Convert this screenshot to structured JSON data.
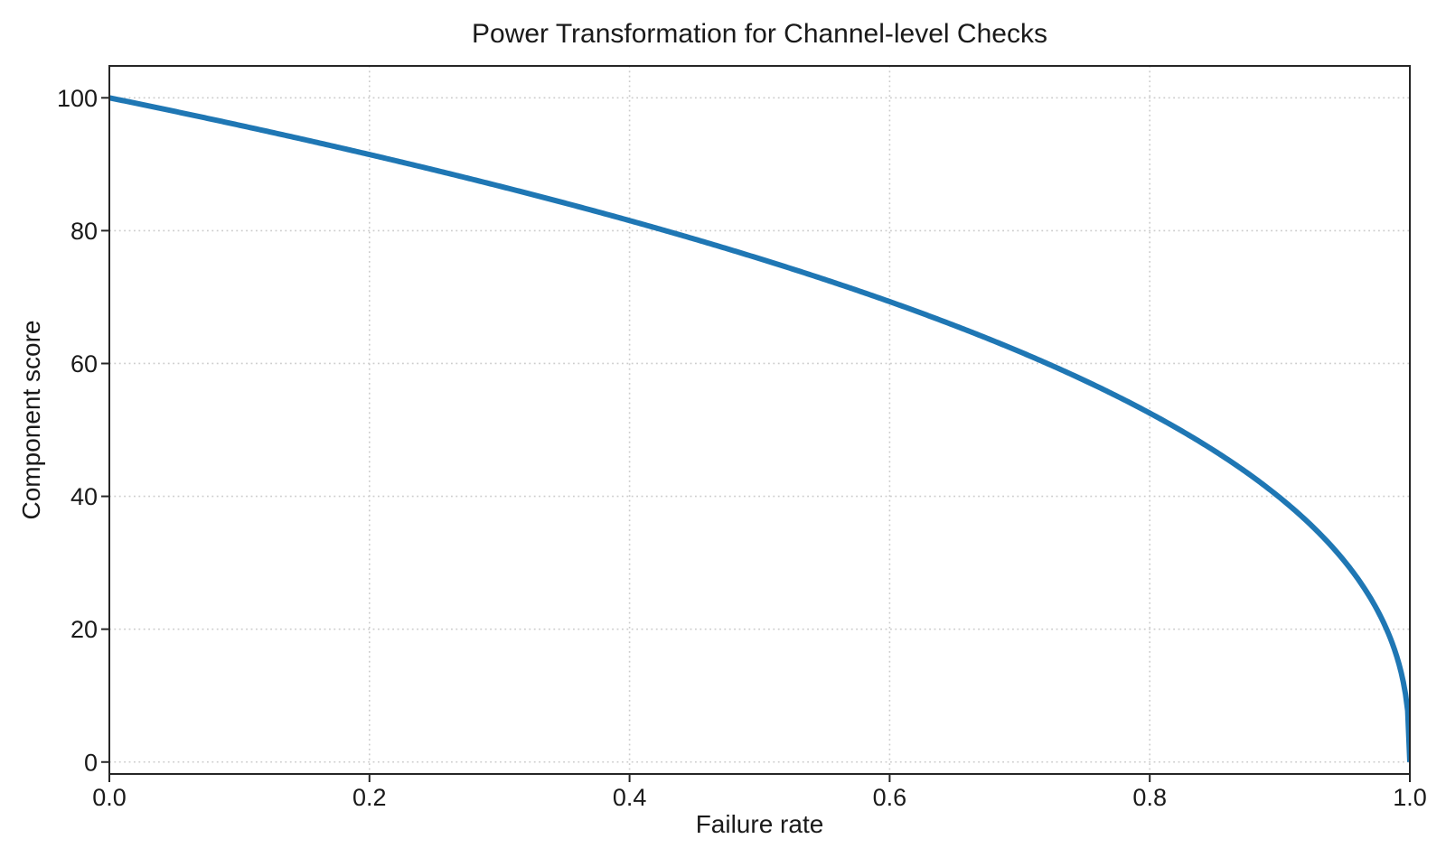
{
  "page": {
    "background": "#ffffff"
  },
  "chart_data": {
    "type": "line",
    "title": "Power Transformation for Channel-level Checks",
    "xlabel": "Failure rate",
    "ylabel": "Component score",
    "xlim": [
      0.0,
      1.0
    ],
    "ylim": [
      -1.8,
      104.8
    ],
    "xticks": {
      "values": [
        0.0,
        0.2,
        0.4,
        0.6,
        0.8,
        1.0
      ],
      "labels": [
        "0.0",
        "0.2",
        "0.4",
        "0.6",
        "0.8",
        "1.0"
      ]
    },
    "yticks": {
      "values": [
        0,
        20,
        40,
        60,
        80,
        100
      ],
      "labels": [
        "0",
        "20",
        "40",
        "60",
        "80",
        "100"
      ]
    },
    "grid": {
      "visible": true,
      "style": "dotted",
      "color": "#cccccc"
    },
    "axis": {
      "spine_color": "#262626",
      "tick_color": "#262626",
      "text_color": "#1a1a1a"
    },
    "legend": {
      "visible": false
    },
    "series": [
      {
        "name": "component-score-curve",
        "color": "#1f77b4",
        "linewidth": 6,
        "formula": "y = 100 * (1 - x)^0.4",
        "scale": 100,
        "power": 0.4,
        "points": [
          [
            0.0,
            100.0
          ],
          [
            0.05,
            98.0
          ],
          [
            0.1,
            95.9
          ],
          [
            0.15,
            93.7
          ],
          [
            0.2,
            91.5
          ],
          [
            0.25,
            89.1
          ],
          [
            0.3,
            86.7
          ],
          [
            0.35,
            84.2
          ],
          [
            0.4,
            81.5
          ],
          [
            0.45,
            78.7
          ],
          [
            0.5,
            75.8
          ],
          [
            0.55,
            72.7
          ],
          [
            0.6,
            69.3
          ],
          [
            0.65,
            65.7
          ],
          [
            0.7,
            61.8
          ],
          [
            0.75,
            57.4
          ],
          [
            0.8,
            52.5
          ],
          [
            0.85,
            46.8
          ],
          [
            0.9,
            39.8
          ],
          [
            0.95,
            30.2
          ],
          [
            0.98,
            20.9
          ],
          [
            0.99,
            15.8
          ],
          [
            0.995,
            12.0
          ],
          [
            0.999,
            6.3
          ],
          [
            1.0,
            0.0
          ]
        ]
      }
    ]
  }
}
